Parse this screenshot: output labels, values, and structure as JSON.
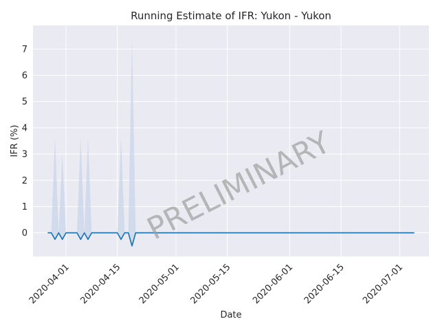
{
  "chart_data": {
    "type": "line",
    "title": "Running Estimate of IFR: Yukon - Yukon",
    "xlabel": "Date",
    "ylabel": "IFR (%)",
    "watermark": "PRELIMINARY",
    "x_start": "2020-03-27",
    "x_end": "2020-07-05",
    "xlim": [
      "2020-03-23",
      "2020-07-09"
    ],
    "ylim": [
      -0.9,
      7.9
    ],
    "yticks": [
      0,
      1,
      2,
      3,
      4,
      5,
      6,
      7
    ],
    "xticks": [
      "2020-04-01",
      "2020-04-15",
      "2020-05-01",
      "2020-05-15",
      "2020-06-01",
      "2020-06-15",
      "2020-07-01"
    ],
    "grid": true,
    "background": "#eaeaf2",
    "grid_color": "#ffffff",
    "line_color": "#1f77b4",
    "band_color": "#c9d6e8",
    "series": [
      {
        "values": [
          [
            "2020-03-27",
            0
          ],
          [
            "2020-03-28",
            0
          ],
          [
            "2020-03-29",
            -0.25
          ],
          [
            "2020-03-30",
            0
          ],
          [
            "2020-03-31",
            -0.25
          ],
          [
            "2020-04-01",
            0
          ],
          [
            "2020-04-02",
            0
          ],
          [
            "2020-04-03",
            0
          ],
          [
            "2020-04-04",
            0
          ],
          [
            "2020-04-05",
            -0.25
          ],
          [
            "2020-04-06",
            0
          ],
          [
            "2020-04-07",
            -0.25
          ],
          [
            "2020-04-08",
            0
          ],
          [
            "2020-04-09",
            0
          ],
          [
            "2020-04-10",
            0
          ],
          [
            "2020-04-11",
            0
          ],
          [
            "2020-04-12",
            0
          ],
          [
            "2020-04-13",
            0
          ],
          [
            "2020-04-14",
            0
          ],
          [
            "2020-04-15",
            0
          ],
          [
            "2020-04-16",
            -0.25
          ],
          [
            "2020-04-17",
            0
          ],
          [
            "2020-04-18",
            0
          ],
          [
            "2020-04-19",
            -0.5
          ],
          [
            "2020-04-20",
            0
          ],
          [
            "2020-07-05",
            0
          ]
        ]
      }
    ],
    "band": [
      [
        "2020-03-27",
        0,
        0
      ],
      [
        "2020-03-28",
        0,
        0
      ],
      [
        "2020-03-29",
        -0.25,
        3.65
      ],
      [
        "2020-03-30",
        0,
        0
      ],
      [
        "2020-03-31",
        -0.25,
        3.0
      ],
      [
        "2020-04-01",
        0,
        0
      ],
      [
        "2020-04-04",
        0,
        0
      ],
      [
        "2020-04-05",
        -0.25,
        3.65
      ],
      [
        "2020-04-06",
        0,
        0
      ],
      [
        "2020-04-07",
        -0.25,
        3.65
      ],
      [
        "2020-04-08",
        0,
        0
      ],
      [
        "2020-04-15",
        0,
        0
      ],
      [
        "2020-04-16",
        -0.25,
        3.65
      ],
      [
        "2020-04-17",
        0,
        0
      ],
      [
        "2020-04-18",
        0,
        0
      ],
      [
        "2020-04-19",
        -0.5,
        7.4
      ],
      [
        "2020-04-20",
        0,
        0
      ]
    ]
  }
}
